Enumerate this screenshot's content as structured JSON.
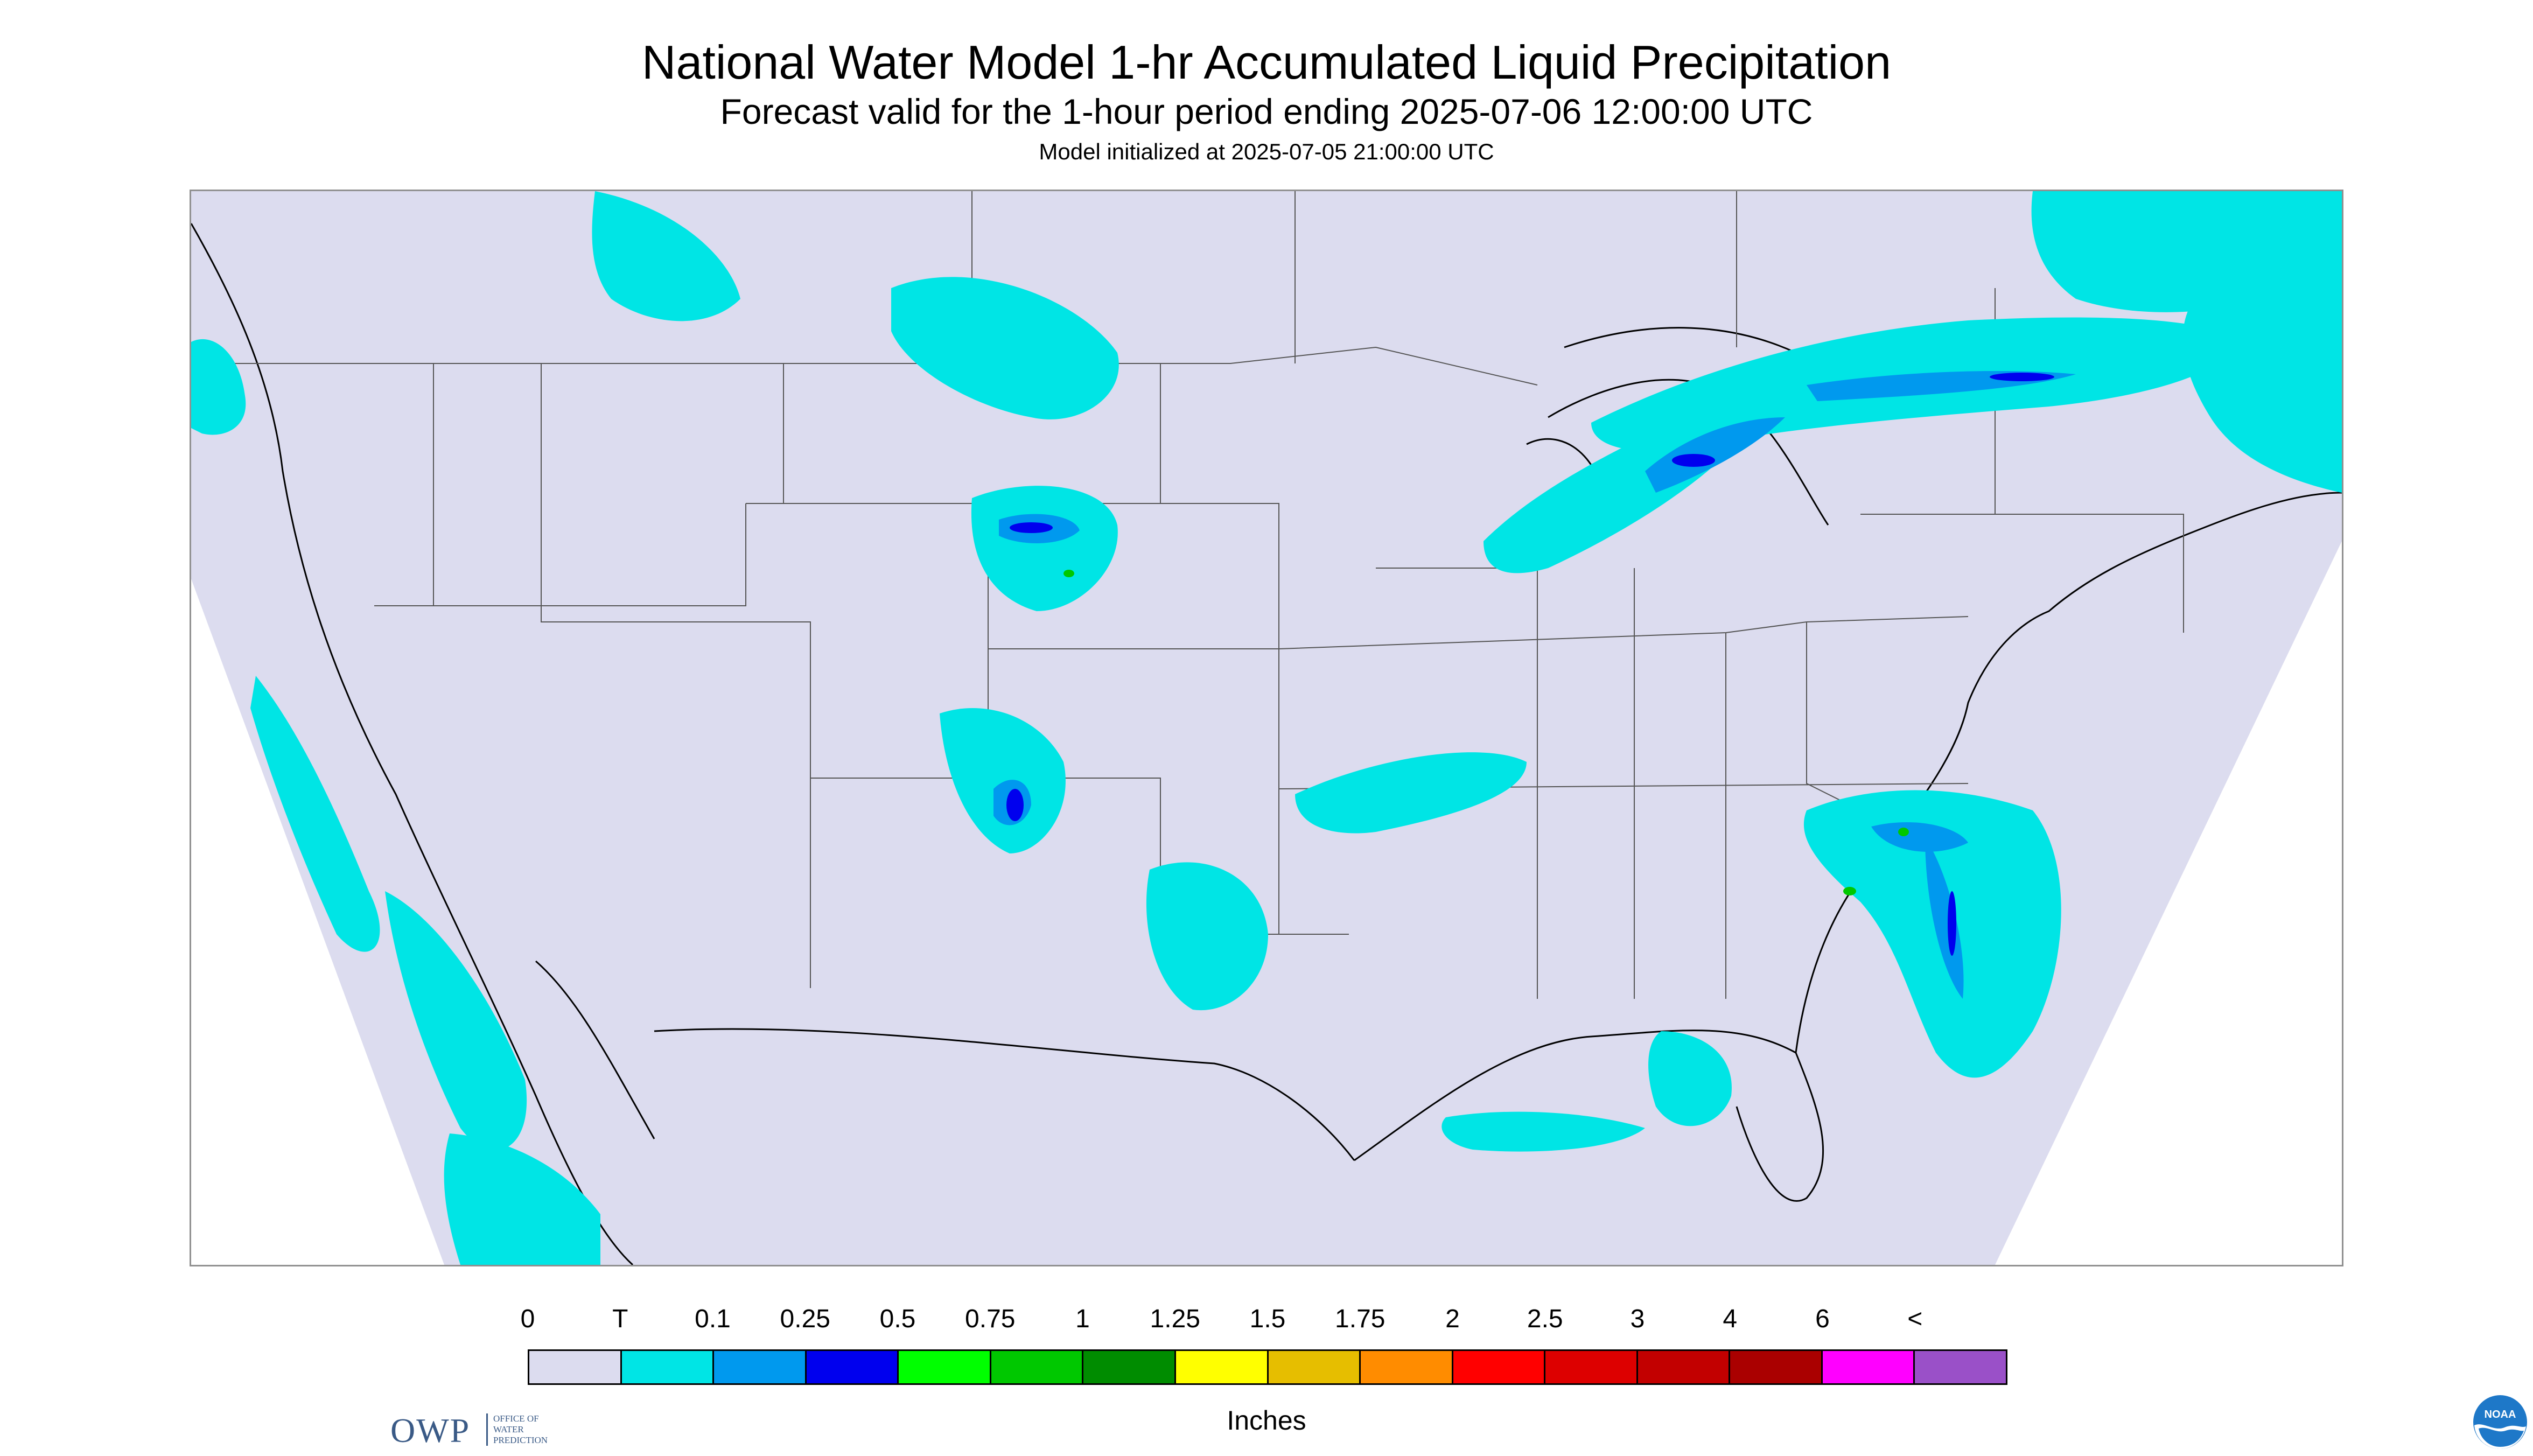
{
  "header": {
    "title": "National Water Model 1-hr Accumulated Liquid Precipitation",
    "subtitle": "Forecast valid for the 1-hour period ending 2025-07-06 12:00:00 UTC",
    "init": "Model initialized at 2025-07-05 21:00:00 UTC"
  },
  "logos": {
    "owp_mark": "OWP",
    "owp_line1": "OFFICE OF",
    "owp_line2": "WATER",
    "owp_line3": "PREDICTION",
    "noaa": "NOAA"
  },
  "legend": {
    "labels": [
      "0",
      "T",
      "0.1",
      "0.25",
      "0.5",
      "0.75",
      "1",
      "1.25",
      "1.5",
      "1.75",
      "2",
      "2.5",
      "3",
      "4",
      "6",
      "<"
    ],
    "colors": [
      "#dcdcef",
      "#00e5e5",
      "#0099ee",
      "#0000ee",
      "#00ff00",
      "#00c800",
      "#008c00",
      "#ffff00",
      "#e6be00",
      "#ff8c00",
      "#ff0000",
      "#dd0000",
      "#c20000",
      "#aa0000",
      "#ff00ff",
      "#9a50c8"
    ],
    "units": "Inches"
  },
  "map": {
    "background_color": "#dcdcef",
    "rain_color": "#00e5e5",
    "heavy_color": "#0099ee",
    "core_color": "#0000ee"
  }
}
